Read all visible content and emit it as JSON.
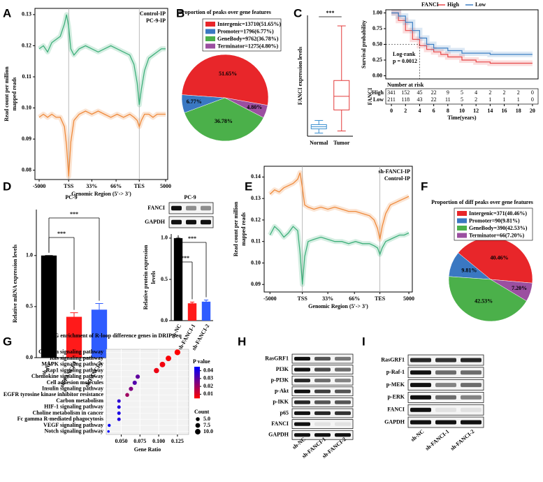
{
  "panel_labels": [
    "A",
    "B",
    "C",
    "D",
    "E",
    "F",
    "G",
    "H",
    "I"
  ],
  "chart_data": [
    {
      "type": "line",
      "xlabel": "Genomic Region (5'-> 3')",
      "ylabel": [
        "Read count per million",
        "mapped reads"
      ],
      "x": [
        0,
        4,
        8,
        12,
        16,
        20,
        24,
        26,
        28,
        30,
        33,
        38,
        44,
        50,
        56,
        62,
        68,
        74,
        80,
        86,
        90,
        93,
        95,
        97,
        100,
        104,
        108,
        112,
        116,
        120
      ],
      "xlim": [
        -4,
        122
      ],
      "xticks": [
        {
          "value": 0,
          "label": "-5000"
        },
        {
          "value": 28,
          "label": "TSS"
        },
        {
          "value": 50,
          "label": "33%"
        },
        {
          "value": 73,
          "label": "66%"
        },
        {
          "value": 95,
          "label": "TES"
        },
        {
          "value": 120,
          "label": "5000"
        }
      ],
      "ylim": [
        0.077,
        0.132
      ],
      "yticks": [
        0.08,
        0.09,
        {
          "value": 0.1,
          "label": "0.10"
        },
        0.11,
        0.12,
        0.13
      ],
      "legend": "upper right",
      "series": [
        {
          "name": "Control-IP",
          "color": "#3fb07b",
          "values": [
            0.119,
            0.12,
            0.118,
            0.121,
            0.122,
            0.123,
            0.127,
            0.13,
            0.126,
            0.119,
            0.117,
            0.119,
            0.12,
            0.119,
            0.118,
            0.119,
            0.12,
            0.119,
            0.118,
            0.117,
            0.114,
            0.108,
            0.101,
            0.106,
            0.112,
            0.116,
            0.117,
            0.118,
            0.119,
            0.119
          ]
        },
        {
          "name": "PC-9-IP",
          "color": "#ef8a3c",
          "values": [
            0.097,
            0.098,
            0.097,
            0.098,
            0.097,
            0.097,
            0.094,
            0.088,
            0.078,
            0.089,
            0.096,
            0.098,
            0.099,
            0.098,
            0.099,
            0.098,
            0.097,
            0.098,
            0.097,
            0.098,
            0.097,
            0.096,
            0.094,
            0.096,
            0.098,
            0.098,
            0.097,
            0.098,
            0.098,
            0.098
          ]
        }
      ]
    },
    {
      "type": "pie",
      "title": "Proportion of peaks over gene features",
      "categories": [
        "Intergenic=13710(51.65%)",
        "Promoter=1796(6.77%)",
        "GeneBody=9762(36.78%)",
        "Terminator=1275(4.80%)"
      ],
      "values": [
        51.65,
        6.77,
        36.78,
        4.8
      ],
      "value_labels": [
        "51.65%",
        "6.77%",
        "36.78%",
        "4.80%"
      ],
      "colors": [
        "#e8262a",
        "#3a78c2",
        "#4bb04a",
        "#9b4fa0"
      ]
    },
    {
      "type": "box",
      "ylabel": "FANCI expression levels",
      "categories": [
        "Normal",
        "Tumor"
      ],
      "colors": [
        "#3a8fd0",
        "#e33b3b"
      ],
      "ylim": [
        0,
        11.5
      ],
      "boxes": [
        {
          "min": 0.3,
          "q1": 0.7,
          "median": 0.9,
          "q3": 1.1,
          "max": 1.5
        },
        {
          "min": 0.5,
          "q1": 2.5,
          "median": 3.8,
          "q3": 5.3,
          "max": 10.5
        }
      ],
      "annotation": "***"
    },
    {
      "type": "step",
      "legend_title": "FANCI",
      "ylabel": "Survival probability",
      "xlabel": "Time(years)",
      "xlim": [
        -0.8,
        20.8
      ],
      "xticks": [
        0,
        2,
        4,
        6,
        8,
        10,
        12,
        14,
        16,
        18,
        20
      ],
      "ylim": [
        -0.05,
        1.05
      ],
      "yticks": [
        {
          "value": 0,
          "label": "0.00"
        },
        0.25,
        {
          "value": 0.5,
          "label": "0.50"
        },
        0.75,
        {
          "value": 1,
          "label": "1.00"
        }
      ],
      "series": [
        {
          "name": "High",
          "color": "#e7484a",
          "x": [
            0,
            1,
            2,
            3,
            4,
            5,
            6,
            7,
            8,
            10,
            12,
            14,
            20
          ],
          "values": [
            1,
            0.88,
            0.72,
            0.58,
            0.48,
            0.42,
            0.38,
            0.34,
            0.3,
            0.25,
            0.22,
            0.2,
            0.2
          ]
        },
        {
          "name": "Low",
          "color": "#3d7fc4",
          "x": [
            0,
            1,
            2,
            3,
            4,
            5,
            6,
            8,
            10,
            14,
            20
          ],
          "values": [
            1,
            0.95,
            0.85,
            0.72,
            0.6,
            0.5,
            0.44,
            0.4,
            0.36,
            0.34,
            0.34
          ]
        }
      ],
      "annotations": [
        "Log-rank",
        "p = 0.0012"
      ],
      "risk_table": {
        "title": "Number at risk",
        "label": "FANCI",
        "rows": [
          {
            "name": "High",
            "values": [
              "341",
              "152",
              "45",
              "22",
              "9",
              "5",
              "4",
              "2",
              "2",
              "2",
              "0"
            ]
          },
          {
            "name": "Low",
            "values": [
              "211",
              "118",
              "43",
              "22",
              "11",
              "5",
              "2",
              "1",
              "1",
              "1",
              "0"
            ]
          }
        ]
      }
    },
    {
      "type": "bar",
      "title": "PC-9",
      "ylabel": [
        "Relative mRNA expression levels"
      ],
      "categories": [
        "sh-NC",
        "sh-FANCI-1",
        "sh-FANCI-2"
      ],
      "values": [
        1.0,
        0.4,
        0.47
      ],
      "errors": [
        0,
        0.04,
        0.06
      ],
      "colors": [
        "#000000",
        "#ff1a1a",
        "#2f5cff"
      ],
      "ylim": [
        0,
        1.45
      ],
      "yticks": [
        {
          "value": 0,
          "label": "0.0"
        },
        0.5,
        {
          "value": 1,
          "label": "1.0"
        }
      ],
      "annotations": [
        "***",
        "***"
      ]
    },
    {
      "type": "bar",
      "title": "PC-9",
      "ylabel": [
        "Relative protein expression",
        "levels"
      ],
      "categories": [
        "sh-NC",
        "sh-FANCI-1",
        "sh-FANCI-2"
      ],
      "values": [
        1.0,
        0.21,
        0.23
      ],
      "errors": [
        0,
        0.015,
        0.02
      ],
      "colors": [
        "#000000",
        "#ff1a1a",
        "#2f5cff"
      ],
      "ylim": [
        0,
        1.05
      ],
      "yticks": [
        {
          "value": 0,
          "label": "0.0"
        },
        0.5,
        {
          "value": 1,
          "label": "1.0"
        }
      ],
      "annotations": [
        "***",
        "***"
      ]
    },
    {
      "type": "line",
      "xlabel": "Genomic Region (5'-> 3')",
      "ylabel": [
        "Read count per million",
        "mapped reads"
      ],
      "x": [
        0,
        4,
        8,
        12,
        16,
        20,
        24,
        26,
        28,
        30,
        33,
        38,
        44,
        50,
        56,
        62,
        68,
        74,
        80,
        86,
        90,
        93,
        95,
        97,
        100,
        104,
        108,
        112,
        116,
        120
      ],
      "xlim": [
        -5,
        123
      ],
      "xticks": [
        {
          "value": 0,
          "label": "-5000"
        },
        {
          "value": 28,
          "label": "TSS"
        },
        {
          "value": 50,
          "label": "33%"
        },
        {
          "value": 73,
          "label": "66%"
        },
        {
          "value": 95,
          "label": "TES"
        },
        {
          "value": 120,
          "label": "5000"
        }
      ],
      "ylim": [
        0.0865,
        0.145
      ],
      "yticks": [
        0.09,
        {
          "value": 0.1,
          "label": "0.10"
        },
        0.11,
        0.12,
        0.13,
        0.14
      ],
      "legend": "upper right",
      "series": [
        {
          "name": "sh-FANCI-IP",
          "color": "#3fb07b",
          "values": [
            0.113,
            0.117,
            0.115,
            0.112,
            0.114,
            0.117,
            0.115,
            0.105,
            0.09,
            0.103,
            0.11,
            0.111,
            0.112,
            0.111,
            0.11,
            0.11,
            0.109,
            0.11,
            0.109,
            0.109,
            0.108,
            0.107,
            0.104,
            0.107,
            0.11,
            0.111,
            0.112,
            0.113,
            0.113,
            0.114
          ]
        },
        {
          "name": "Control-IP",
          "color": "#ef8a3c",
          "values": [
            0.132,
            0.134,
            0.133,
            0.135,
            0.136,
            0.137,
            0.139,
            0.142,
            0.135,
            0.127,
            0.126,
            0.125,
            0.126,
            0.125,
            0.126,
            0.125,
            0.124,
            0.124,
            0.123,
            0.122,
            0.12,
            0.116,
            0.111,
            0.117,
            0.123,
            0.127,
            0.128,
            0.129,
            0.13,
            0.131
          ]
        }
      ]
    },
    {
      "type": "pie",
      "title": "Proportion of diff peaks over gene features",
      "categories": [
        "Intergenic=371(40.46%)",
        "Promoter=90(9.81%)",
        "GeneBody=390(42.53%)",
        "Terminator=66(7.20%)"
      ],
      "values": [
        40.46,
        9.81,
        42.53,
        7.2
      ],
      "value_labels": [
        "40.46%",
        "9.81%",
        "42.53%",
        "7.20%"
      ],
      "colors": [
        "#e8262a",
        "#3a78c2",
        "#4bb04a",
        "#9b4fa0"
      ]
    },
    {
      "type": "dot",
      "title": "KEGG enrichment of R-loop difference genes in DRIP-seq",
      "xlabel": "Gene Ratio",
      "categories": [
        "Calcium signaling pathway",
        "Ras signaling pathway",
        "MAPK signaling pathway",
        "Rap1 signaling pathway",
        "Chemokine signaling pathway",
        "Cell adhesion molecules",
        "Insulin signaling pathway",
        "EGFR tyrosine kinase inhibitor resistance",
        "Carbon metabolism",
        "HIF-1 signaling pathway",
        "Choline metabolism in cancer",
        "Fc gamma R-mediated phagocytosis",
        "VEGF signaling pathway",
        "Notch signaling pathway"
      ],
      "values": [
        0.125,
        0.113,
        0.105,
        0.097,
        0.072,
        0.068,
        0.063,
        0.058,
        0.047,
        0.047,
        0.047,
        0.047,
        0.034,
        0.033
      ],
      "p_values": [
        0.005,
        0.006,
        0.007,
        0.008,
        0.03,
        0.032,
        0.025,
        0.02,
        0.038,
        0.04,
        0.041,
        0.04,
        0.044,
        0.045
      ],
      "counts": [
        11,
        10,
        10,
        9,
        6,
        6,
        6,
        5,
        4,
        4,
        4,
        4,
        3,
        2
      ],
      "xlim": [
        0.03,
        0.14
      ],
      "xticks": [
        {
          "value": 0.05,
          "label": "0.050"
        },
        0.075,
        {
          "value": 0.1,
          "label": "0.100"
        },
        0.125
      ],
      "color_title": "P value",
      "clim": [
        0.005,
        0.045
      ],
      "colors": [
        "#ff0000",
        "#0000ff"
      ],
      "cticks": [
        0.04,
        0.03,
        0.02,
        0.01
      ],
      "size_title": "Count",
      "size_ticks": [
        {
          "value": 5,
          "label": "5.0"
        },
        7.5,
        {
          "value": 10,
          "label": "10.0"
        }
      ]
    }
  ],
  "blots": [
    {
      "rows": [
        "FANCI",
        "GAPDH"
      ]
    },
    {
      "rows": [
        "RasGRF1",
        "PI3K",
        "p-PI3K",
        "p-Akt",
        "p-IKK",
        "p65",
        "FANCI",
        "GAPDH"
      ],
      "lanes": [
        "sh-NC",
        "sh-FANCI-1",
        "sh-FANCI-2"
      ]
    },
    {
      "rows": [
        "RasGRF1",
        "p-Raf-1",
        "p-MEK",
        "p-ERK",
        "FANCI",
        "GAPDH"
      ],
      "lanes": [
        "sh-NC",
        "sh-FANCI-1",
        "sh-FANCI-2"
      ]
    }
  ]
}
